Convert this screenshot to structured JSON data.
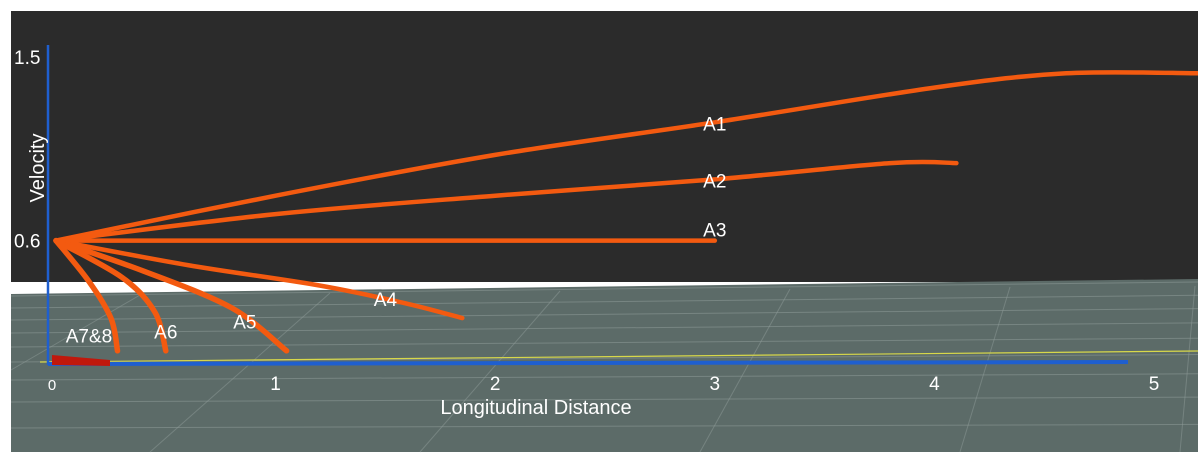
{
  "colors": {
    "sky": "#2b2b2b",
    "ground": "#5c6b68",
    "curve": "#f35a10",
    "axis": "#1f5fcf",
    "yellow_line": "#d8d84a",
    "marker": "#c0180c"
  },
  "chart_data": {
    "type": "line",
    "xlabel": "Longitudinal Distance",
    "ylabel": "Velocity",
    "x_ticks": [
      "0",
      "1",
      "2",
      "3",
      "4",
      "5"
    ],
    "y_ticks": [
      "1.5",
      "0.6"
    ],
    "xlim": [
      0,
      5.3
    ],
    "ylim": [
      0,
      1.5
    ],
    "grid": true,
    "series": [
      {
        "name": "A1",
        "points": [
          [
            0,
            0.6
          ],
          [
            1,
            0.82
          ],
          [
            2,
            1.02
          ],
          [
            3,
            1.18
          ],
          [
            4,
            1.35
          ],
          [
            4.6,
            1.42
          ],
          [
            5.2,
            1.42
          ]
        ]
      },
      {
        "name": "A2",
        "points": [
          [
            0,
            0.6
          ],
          [
            1,
            0.73
          ],
          [
            2,
            0.82
          ],
          [
            3,
            0.9
          ],
          [
            3.8,
            0.98
          ],
          [
            4.1,
            0.98
          ]
        ]
      },
      {
        "name": "A3",
        "points": [
          [
            0,
            0.6
          ],
          [
            1,
            0.6
          ],
          [
            2,
            0.6
          ],
          [
            3,
            0.6
          ]
        ]
      },
      {
        "name": "A4",
        "points": [
          [
            0,
            0.6
          ],
          [
            0.6,
            0.48
          ],
          [
            1.2,
            0.38
          ],
          [
            1.6,
            0.29
          ],
          [
            1.85,
            0.22
          ]
        ]
      },
      {
        "name": "A5",
        "points": [
          [
            0,
            0.6
          ],
          [
            0.4,
            0.45
          ],
          [
            0.8,
            0.27
          ],
          [
            1.05,
            0.06
          ]
        ]
      },
      {
        "name": "A6",
        "points": [
          [
            0,
            0.6
          ],
          [
            0.3,
            0.42
          ],
          [
            0.45,
            0.25
          ],
          [
            0.5,
            0.06
          ]
        ]
      },
      {
        "name": "A7&8",
        "points": [
          [
            0,
            0.6
          ],
          [
            0.15,
            0.4
          ],
          [
            0.25,
            0.22
          ],
          [
            0.28,
            0.06
          ]
        ]
      }
    ]
  }
}
